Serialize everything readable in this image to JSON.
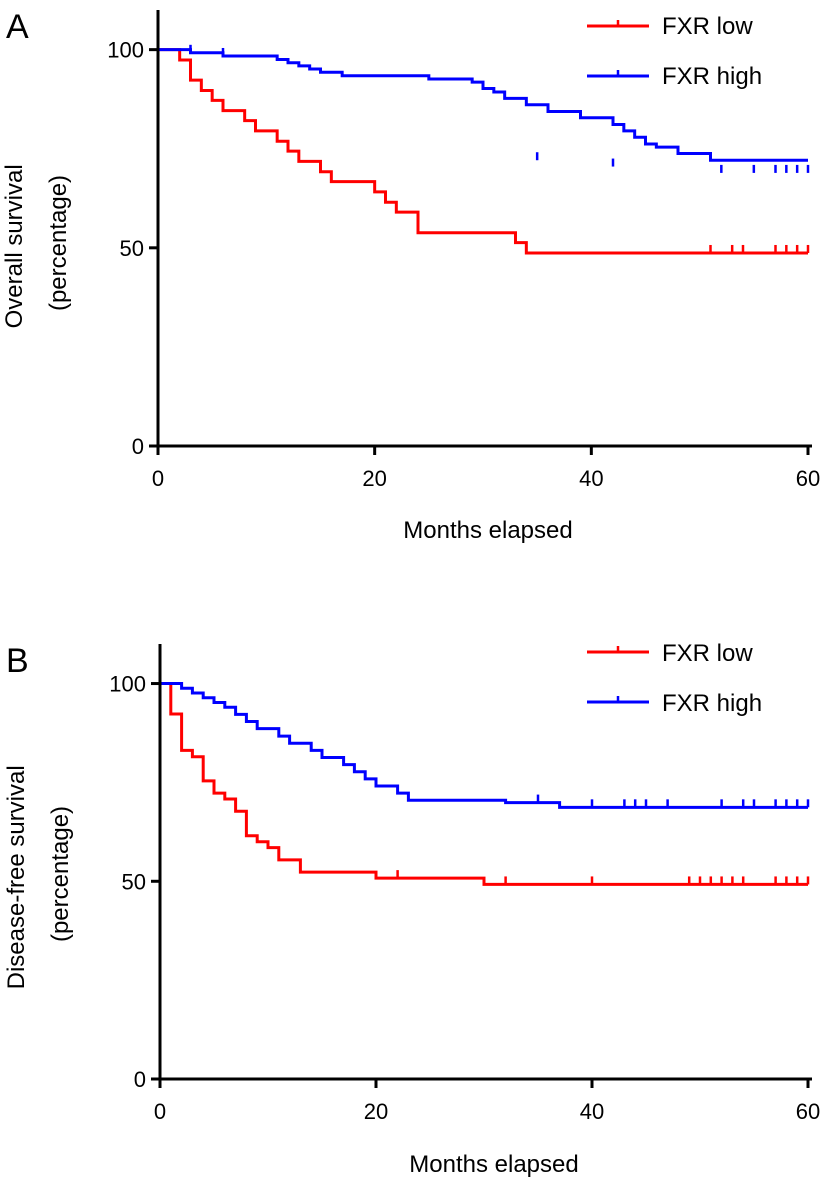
{
  "chart_data": [
    {
      "type": "line",
      "panel_label": "A",
      "xlabel": "Months elapsed",
      "ylabel": [
        "Overall survival",
        "(percentage)"
      ],
      "xlim": [
        0,
        60
      ],
      "ylim": [
        0,
        110
      ],
      "x_ticks": [
        0,
        20,
        40,
        60
      ],
      "y_ticks": [
        0,
        50,
        100
      ],
      "grid": false,
      "legend_position": "top-right",
      "series": [
        {
          "name": "FXR low",
          "color": "#ff0000",
          "steps": [
            [
              0,
              100
            ],
            [
              2,
              97.4
            ],
            [
              3,
              92.3
            ],
            [
              4,
              89.7
            ],
            [
              5,
              87.2
            ],
            [
              6,
              84.6
            ],
            [
              8,
              82.1
            ],
            [
              9,
              79.5
            ],
            [
              11,
              76.9
            ],
            [
              12,
              74.4
            ],
            [
              13,
              71.8
            ],
            [
              15,
              69.2
            ],
            [
              16,
              66.7
            ],
            [
              20,
              64.1
            ],
            [
              21,
              61.5
            ],
            [
              22,
              59
            ],
            [
              24,
              53.8
            ],
            [
              33,
              51.3
            ],
            [
              34,
              48.7
            ],
            [
              60,
              48.7
            ]
          ],
          "censored": [
            [
              51,
              48.7
            ],
            [
              53,
              48.7
            ],
            [
              54,
              48.7
            ],
            [
              57,
              48.7
            ],
            [
              58,
              48.7
            ],
            [
              59,
              48.7
            ],
            [
              60,
              48.7
            ]
          ]
        },
        {
          "name": "FXR high",
          "color": "#0000ff",
          "steps": [
            [
              0,
              100
            ],
            [
              3,
              99.2
            ],
            [
              6,
              98.4
            ],
            [
              11,
              97.5
            ],
            [
              12,
              96.7
            ],
            [
              13,
              95.9
            ],
            [
              14,
              95.1
            ],
            [
              15,
              94.3
            ],
            [
              17,
              93.4
            ],
            [
              25,
              92.6
            ],
            [
              29,
              91.8
            ],
            [
              30,
              90.2
            ],
            [
              31,
              89.3
            ],
            [
              32,
              87.7
            ],
            [
              34,
              86.1
            ],
            [
              36,
              84.4
            ],
            [
              39,
              82.8
            ],
            [
              42,
              81.1
            ],
            [
              43,
              79.5
            ],
            [
              44,
              77.9
            ],
            [
              45,
              76.2
            ],
            [
              46,
              75.4
            ],
            [
              48,
              73.8
            ],
            [
              51,
              72.1
            ],
            [
              60,
              72.1
            ]
          ],
          "censored": [
            [
              3,
              99.2
            ],
            [
              6,
              98.4
            ],
            [
              35,
              72.1
            ],
            [
              42,
              70.5
            ],
            [
              52,
              68.9
            ],
            [
              55,
              68.9
            ],
            [
              57,
              68.9
            ],
            [
              58,
              68.9
            ],
            [
              59,
              68.9
            ],
            [
              60,
              68.9
            ]
          ]
        }
      ]
    },
    {
      "type": "line",
      "panel_label": "B",
      "xlabel": "Months elapsed",
      "ylabel": [
        "Disease-free survival",
        "(percentage)"
      ],
      "xlim": [
        0,
        60
      ],
      "ylim": [
        0,
        110
      ],
      "x_ticks": [
        0,
        20,
        40,
        60
      ],
      "y_ticks": [
        0,
        50,
        100
      ],
      "grid": false,
      "legend_position": "top-right",
      "series": [
        {
          "name": "FXR low",
          "color": "#ff0000",
          "steps": [
            [
              0,
              100
            ],
            [
              1,
              92.3
            ],
            [
              2,
              83.1
            ],
            [
              3,
              81.5
            ],
            [
              4,
              75.4
            ],
            [
              5,
              72.3
            ],
            [
              6,
              70.8
            ],
            [
              7,
              67.7
            ],
            [
              8,
              61.5
            ],
            [
              9,
              60
            ],
            [
              10,
              58.5
            ],
            [
              11,
              55.4
            ],
            [
              13,
              52.3
            ],
            [
              20,
              50.8
            ],
            [
              30,
              49.2
            ],
            [
              60,
              49.2
            ]
          ],
          "censored": [
            [
              22,
              50.8
            ],
            [
              32,
              49.2
            ],
            [
              40,
              49.2
            ],
            [
              49,
              49.2
            ],
            [
              50,
              49.2
            ],
            [
              51,
              49.2
            ],
            [
              52,
              49.2
            ],
            [
              53,
              49.2
            ],
            [
              54,
              49.2
            ],
            [
              57,
              49.2
            ],
            [
              58,
              49.2
            ],
            [
              59,
              49.2
            ],
            [
              60,
              49.2
            ]
          ]
        },
        {
          "name": "FXR high",
          "color": "#0000ff",
          "steps": [
            [
              0,
              100
            ],
            [
              2,
              98.8
            ],
            [
              3,
              97.6
            ],
            [
              4,
              96.4
            ],
            [
              5,
              95.2
            ],
            [
              6,
              94
            ],
            [
              7,
              92.2
            ],
            [
              8,
              90.4
            ],
            [
              9,
              88.6
            ],
            [
              11,
              86.7
            ],
            [
              12,
              84.9
            ],
            [
              14,
              83.1
            ],
            [
              15,
              81.3
            ],
            [
              17,
              79.5
            ],
            [
              18,
              77.7
            ],
            [
              19,
              75.9
            ],
            [
              20,
              74.1
            ],
            [
              22,
              72.3
            ],
            [
              23,
              70.5
            ],
            [
              32,
              69.9
            ],
            [
              37,
              68.7
            ],
            [
              60,
              68.7
            ]
          ],
          "censored": [
            [
              35,
              69.9
            ],
            [
              40,
              68.7
            ],
            [
              43,
              68.7
            ],
            [
              44,
              68.7
            ],
            [
              45,
              68.7
            ],
            [
              47,
              68.7
            ],
            [
              52,
              68.7
            ],
            [
              54,
              68.7
            ],
            [
              55,
              68.7
            ],
            [
              57,
              68.7
            ],
            [
              58,
              68.7
            ],
            [
              59,
              68.7
            ],
            [
              60,
              68.7
            ]
          ]
        }
      ]
    }
  ]
}
